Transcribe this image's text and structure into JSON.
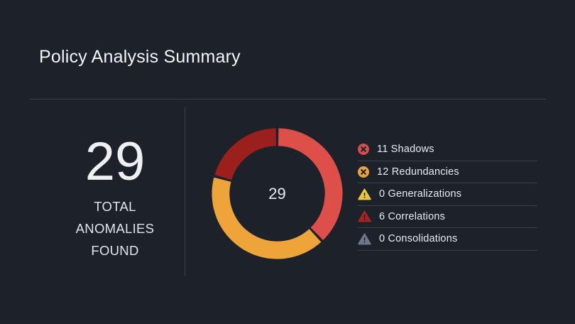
{
  "page": {
    "title": "Policy Analysis Summary"
  },
  "summary": {
    "value": "29",
    "label_lines": [
      "TOTAL",
      "ANOMALIES",
      "FOUND"
    ]
  },
  "chart_data": {
    "type": "pie",
    "subtype": "donut",
    "title": "Policy Analysis Summary",
    "center_label": "29",
    "total": 29,
    "start_angle_deg": 0,
    "direction": "clockwise",
    "segments": [
      {
        "name": "Shadows",
        "value": 11,
        "color": "#dd4f48"
      },
      {
        "name": "Redundancies",
        "value": 12,
        "color": "#efa43a"
      },
      {
        "name": "Generalizations",
        "value": 0,
        "color": "#e9c63c"
      },
      {
        "name": "Correlations",
        "value": 6,
        "color": "#9b1f1c"
      },
      {
        "name": "Consolidations",
        "value": 0,
        "color": "#6e7888"
      }
    ],
    "legend_position": "right"
  },
  "legend": {
    "items": [
      {
        "text": "11 Shadows",
        "count": 11,
        "label": "Shadows",
        "icon": "x-circle",
        "icon_color": "#d0504d"
      },
      {
        "text": "12 Redundancies",
        "count": 12,
        "label": "Redundancies",
        "icon": "x-circle",
        "icon_color": "#e8a33d"
      },
      {
        "text": "0 Generalizations",
        "count": 0,
        "label": "Generalizations",
        "icon": "warning-triangle",
        "icon_color": "#e9c63c"
      },
      {
        "text": "6 Correlations",
        "count": 6,
        "label": "Correlations",
        "icon": "warning-triangle",
        "icon_color": "#a22522"
      },
      {
        "text": "0 Consolidations",
        "count": 0,
        "label": "Consolidations",
        "icon": "warning-triangle",
        "icon_color": "#6e7888"
      }
    ]
  },
  "colors": {
    "background": "#1c212a",
    "divider": "#3a4049",
    "text_primary": "#f4f5f7",
    "text_secondary": "#e2e4e8"
  }
}
